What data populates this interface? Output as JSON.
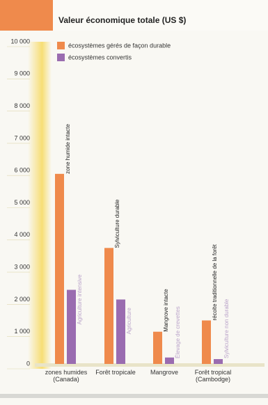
{
  "chart_data": {
    "type": "bar",
    "title": "Valeur économique totale (US $)",
    "categories": [
      "zones humides (Canada)",
      "Forêt tropicale",
      "Mangrove",
      "Forêt tropical (Cambodge)"
    ],
    "series": [
      {
        "name": "écosystèmes gérés de façon durable",
        "color": "#ef8a4c",
        "values": [
          5900,
          3600,
          1000,
          1350
        ],
        "labels": [
          "zone humide intacte",
          "Sylviculture durable",
          "Mangrove intacte",
          "récolte traditionnelle de la forêt"
        ]
      },
      {
        "name": "écosystèmes convertis",
        "color": "#9a6cb0",
        "values": [
          2300,
          2000,
          200,
          150
        ],
        "labels": [
          "Agriculture intensive",
          "Agriculture",
          "Élevage de crevettes",
          "Sylviculture non durable"
        ]
      }
    ],
    "ylim": [
      0,
      10000
    ],
    "yticks": [
      0,
      {
        "value": 1000,
        "label": "1 000"
      },
      {
        "value": 2000,
        "label": "2 000"
      },
      {
        "value": 3000,
        "label": "3 000"
      },
      {
        "value": 4000,
        "label": "4 000"
      },
      {
        "value": 5000,
        "label": "5 000"
      },
      {
        "value": 6000,
        "label": "6 000"
      },
      {
        "value": 7000,
        "label": "7 000"
      },
      {
        "value": 8000,
        "label": "8 000"
      },
      {
        "value": 9000,
        "label": "9 000"
      },
      {
        "value": 10000,
        "label": "10 000"
      }
    ],
    "legend": "top-left"
  }
}
